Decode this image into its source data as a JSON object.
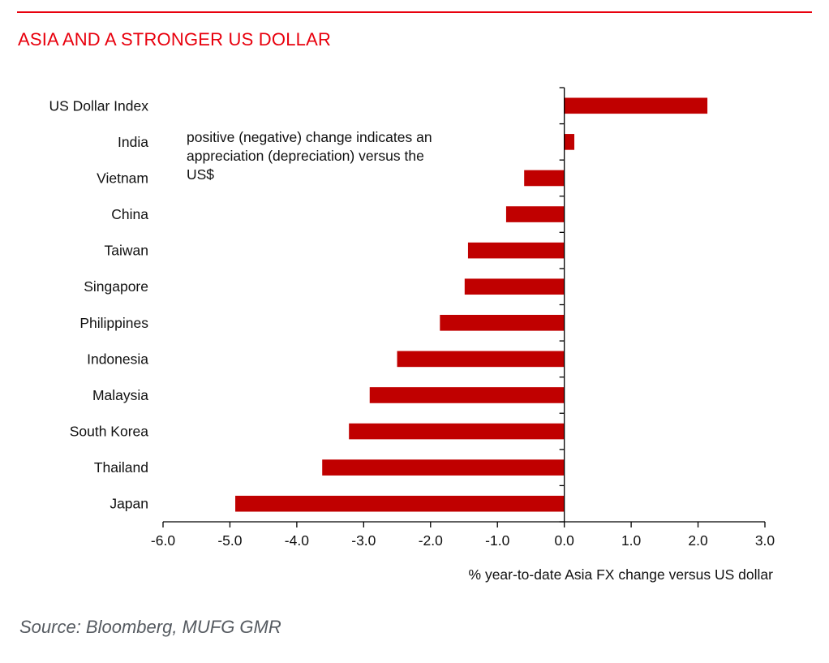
{
  "header": {
    "title": "ASIA AND A STRONGER US DOLLAR"
  },
  "footer": {
    "source": "Source: Bloomberg, MUFG GMR"
  },
  "colors": {
    "accent": "#e8000d",
    "bar": "#c00000",
    "axis": "#000000",
    "source_text": "#555a60"
  },
  "chart_data": {
    "type": "bar",
    "orientation": "horizontal",
    "title": "ASIA AND A STRONGER US DOLLAR",
    "xlabel": "% year-to-date Asia FX change versus US dollar",
    "ylabel": "",
    "xlim": [
      -6.0,
      3.0
    ],
    "xticks": [
      -6.0,
      -5.0,
      -4.0,
      -3.0,
      -2.0,
      -1.0,
      0.0,
      1.0,
      2.0,
      3.0
    ],
    "xtick_labels": [
      "-6.0",
      "-5.0",
      "-4.0",
      "-3.0",
      "-2.0",
      "-1.0",
      "0.0",
      "1.0",
      "2.0",
      "3.0"
    ],
    "grid": false,
    "legend": "none",
    "categories": [
      "US Dollar Index",
      "India",
      "Vietnam",
      "China",
      "Taiwan",
      "Singapore",
      "Philippines",
      "Indonesia",
      "Malaysia",
      "South Korea",
      "Thailand",
      "Japan"
    ],
    "values": [
      2.14,
      0.15,
      -0.6,
      -0.87,
      -1.44,
      -1.49,
      -1.86,
      -2.5,
      -2.91,
      -3.22,
      -3.62,
      -4.92
    ],
    "annotations": [
      "positive (negative) change indicates an",
      "appreciation (depreciation) versus the",
      "US$"
    ]
  }
}
